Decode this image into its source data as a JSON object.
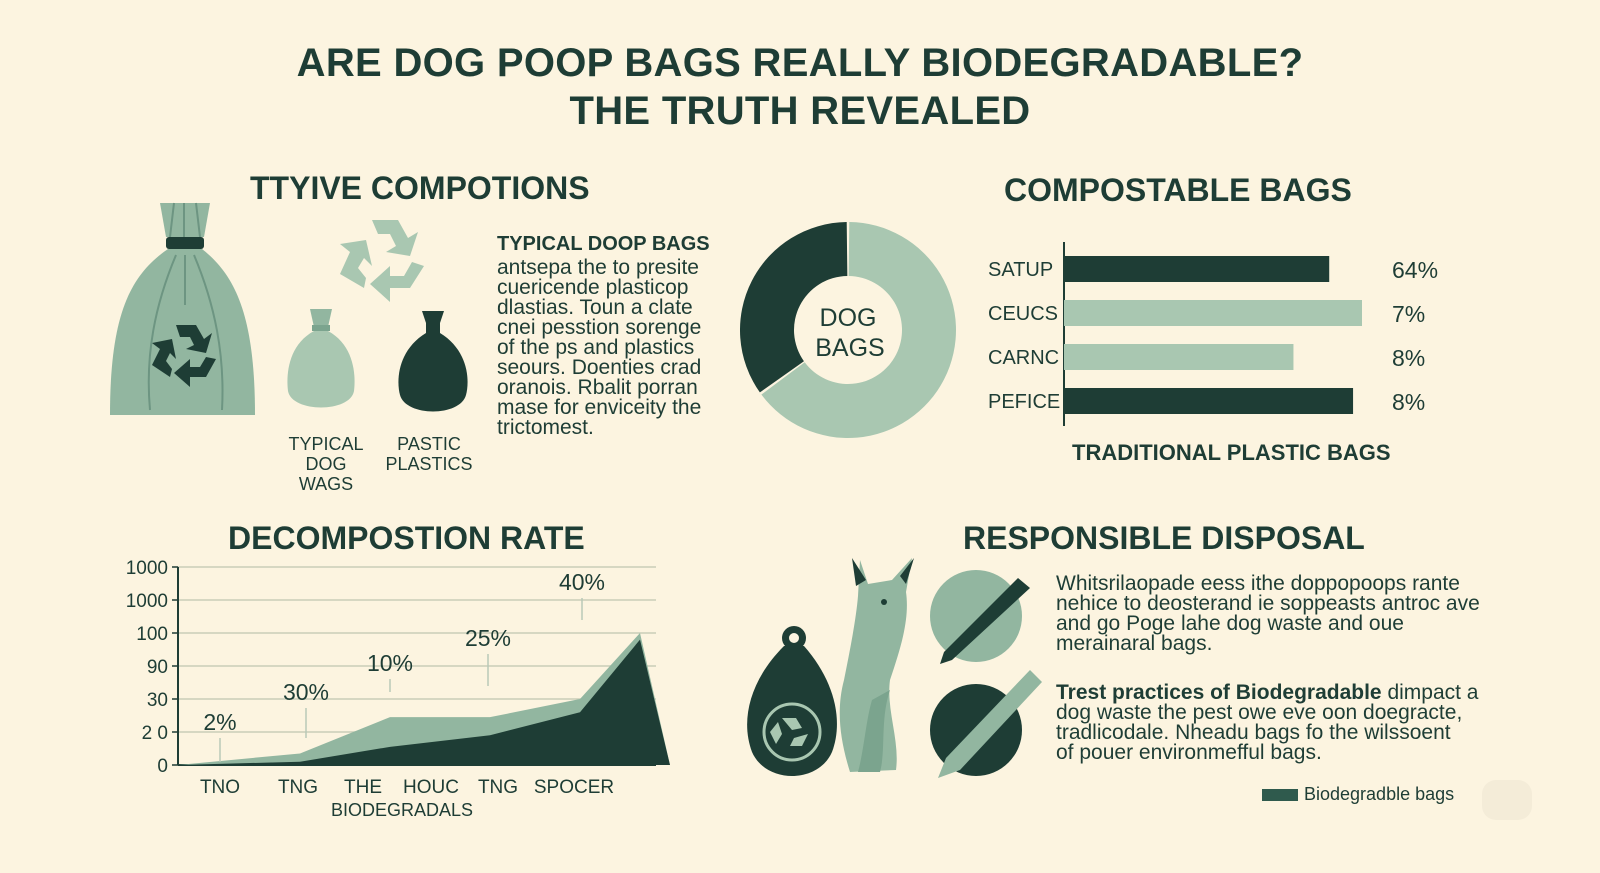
{
  "title": {
    "line1": "ARE DOG POOP BAGS REALLY BIODEGRADABLE?",
    "line2": "THE TRUTH REVEALED"
  },
  "composition": {
    "heading": "TTYIVE COMPOTIONS",
    "caption_left_1": "TYPICAL",
    "caption_left_2": "DOG WAGS",
    "caption_right_1": "PASTIC",
    "caption_right_2": "PLASTICS",
    "text_heading": "TYPICAL DOOP BAGS",
    "text_lines": [
      "antsepa the to presite",
      "cuericende plasticop",
      "dlastias.  Toun a clate",
      "cnei pesstion sorenge",
      "of the ps and plastics",
      "seours.  Doenties crad",
      "oranois.  Rbalit porran",
      "mase for enviceity the",
      "trictomest."
    ]
  },
  "compostable": {
    "heading": "COMPOSTABLE BAGS",
    "donut_label_1": "DOG",
    "donut_label_2": "BAGS",
    "footer": "TRADITIONAL PLASTIC BAGS"
  },
  "decomposition": {
    "heading": "DECOMPOSTION RATE"
  },
  "disposal": {
    "heading": "RESPONSIBLE DISPOSAL",
    "para1": [
      "Whitsrilaopade eess ithe doppopoops rante",
      "nehice to deosterand ie soppeasts antroc ave",
      "and  go  Poge  lahe  dog  waste  and  oue",
      "merainaral bags."
    ],
    "para2_bold": "Trest practices of Biodegradable",
    "para2_rest_first": " dimpact a",
    "para2": [
      "dog waste the pest owe eve oon doegracte,",
      "tradlicodale.  Nheadu bags fo the wilssoent",
      "of pouer environmefful bags."
    ],
    "legend_label": "Biodegradble bags"
  },
  "colors": {
    "background": "#fcf4e0",
    "dark": "#1e3d35",
    "sage": "#92b6a0",
    "light_sage": "#a9c7b1"
  },
  "chart_data": [
    {
      "type": "pie",
      "labels": [
        "DOG",
        "BAGS"
      ],
      "values": [
        35,
        65
      ],
      "colors": [
        "#1e3d35",
        "#a9c7b1"
      ]
    },
    {
      "type": "bar",
      "orientation": "horizontal",
      "categories": [
        "SATUP",
        "CEUCS",
        "CARNC",
        "PEFICE"
      ],
      "values": [
        64,
        7,
        8,
        8
      ],
      "bar_lengths_relative": [
        0.89,
        1.0,
        0.77,
        0.97
      ],
      "value_labels": [
        "64%",
        "7%",
        "8%",
        "8%"
      ],
      "colors": [
        "#1e3d35",
        "#a9c7b1",
        "#a9c7b1",
        "#1e3d35"
      ],
      "xlabel": "TRADITIONAL PLASTIC BAGS"
    },
    {
      "type": "area",
      "y_tick_labels": [
        "0",
        "2 0",
        "30",
        "90",
        "100",
        "1000",
        "1000"
      ],
      "x_tick_labels": [
        "TNO",
        "TNG",
        "THE",
        "HOUC",
        "TNG",
        "SPOCER"
      ],
      "x_sublabel": "BIODEGRADALS",
      "annotations": [
        "2%",
        "30%",
        "10%",
        "25%",
        "40%"
      ],
      "series": [
        {
          "values": [
            0,
            0.35,
            1.45,
            1.45,
            2.0,
            4.0,
            0
          ]
        },
        {
          "values": [
            0,
            0.1,
            0.55,
            0.9,
            1.6,
            3.8,
            0
          ]
        }
      ]
    }
  ]
}
